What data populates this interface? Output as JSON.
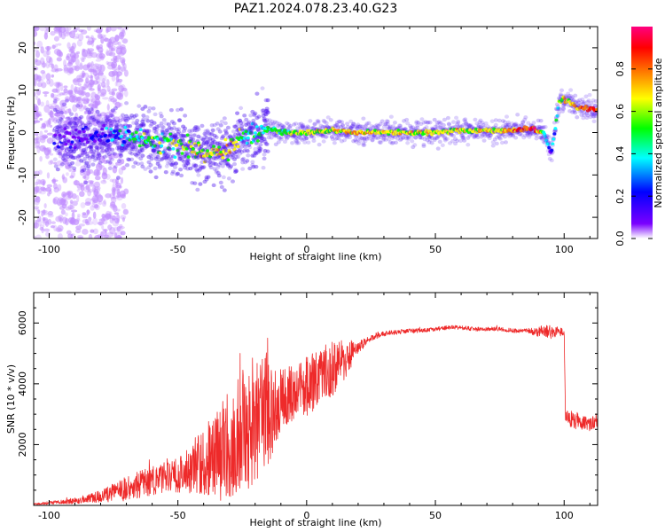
{
  "title": "PAZ1.2024.078.23.40.G23",
  "colors": {
    "snr_line": "#ee2a2a",
    "speckle": "#c08cff",
    "band_main": "#4a10ef",
    "band_core": "#20d8f0",
    "band_hot": "#ff3b1a",
    "frame": "#000000",
    "background": "#ffffff"
  },
  "chart_data": [
    {
      "type": "heatmap",
      "title": "PAZ1.2024.078.23.40.G23",
      "xlabel": "Height of straight line (km)",
      "ylabel": "Frequency (Hz)",
      "xlim": [
        -106,
        113
      ],
      "ylim": [
        -25,
        25
      ],
      "x_ticks": [
        -100,
        -50,
        0,
        50,
        100
      ],
      "y_ticks": [
        -20,
        -10,
        0,
        10,
        20
      ],
      "colorbar": {
        "label": "Normalized spectral amplitude",
        "range": [
          0,
          1
        ],
        "ticks": [
          0.0,
          0.2,
          0.4,
          0.6,
          0.8
        ],
        "tick_labels": [
          "0.0",
          "0.2",
          "0.4",
          "0.6",
          "0.8"
        ],
        "colormap": [
          "#ffffff",
          "#7a00ff",
          "#0000ff",
          "#00ffff",
          "#00ff00",
          "#ffff00",
          "#ff8000",
          "#ff0000",
          "#ff0080"
        ]
      },
      "ridge": {
        "x": [
          -100,
          -90,
          -80,
          -70,
          -60,
          -50,
          -40,
          -30,
          -25,
          -20,
          -15,
          -10,
          0,
          10,
          20,
          30,
          40,
          50,
          60,
          70,
          80,
          88,
          92,
          95,
          98,
          100,
          105,
          110,
          113
        ],
        "frequency_hz": [
          -1,
          -2,
          -1,
          -1,
          -2,
          -3,
          -5,
          -4,
          -1,
          0,
          1,
          0,
          0,
          0.5,
          0,
          0,
          0,
          0,
          0.5,
          0.5,
          0.5,
          1,
          0,
          -5,
          7,
          8,
          6,
          5.5,
          5.5
        ],
        "amplitude": [
          0.1,
          0.1,
          0.2,
          0.4,
          0.5,
          0.5,
          0.6,
          0.6,
          0.5,
          0.5,
          0.4,
          0.5,
          0.6,
          0.6,
          0.7,
          0.6,
          0.6,
          0.6,
          0.6,
          0.6,
          0.7,
          0.9,
          0.5,
          0.2,
          0.5,
          0.6,
          0.7,
          0.8,
          0.8
        ]
      },
      "scatter_region": {
        "x_range": [
          -106,
          -70
        ],
        "frequency_range_hz": [
          -25,
          25
        ],
        "amplitude_level": 0.1
      }
    },
    {
      "type": "line",
      "xlabel": "Height of straight line (km)",
      "ylabel": "SNR (10 * v/v)",
      "xlim": [
        -106,
        113
      ],
      "ylim": [
        0,
        7000
      ],
      "x_ticks": [
        -100,
        -50,
        0,
        50,
        100
      ],
      "y_ticks": [
        2000,
        4000,
        6000
      ],
      "series": [
        {
          "x": [
            -106,
            -100,
            -90,
            -80,
            -70,
            -60,
            -50,
            -45,
            -40,
            -35,
            -30,
            -25,
            -20,
            -15,
            -12,
            -10,
            -5,
            0,
            5,
            10,
            15,
            20,
            25,
            30,
            35,
            40,
            45,
            50,
            55,
            60,
            65,
            70,
            75,
            80,
            85,
            90,
            92,
            95,
            98,
            100,
            100.5,
            103,
            106,
            110,
            113
          ],
          "y": [
            50,
            80,
            150,
            300,
            550,
            800,
            1000,
            1200,
            1400,
            1800,
            2000,
            2500,
            2800,
            3200,
            3300,
            3500,
            3700,
            3900,
            4200,
            4500,
            4800,
            5200,
            5500,
            5650,
            5700,
            5750,
            5750,
            5800,
            5850,
            5850,
            5800,
            5800,
            5800,
            5750,
            5750,
            5700,
            5800,
            5700,
            5700,
            5700,
            3000,
            2800,
            2750,
            2700,
            2800
          ],
          "spread": [
            30,
            50,
            100,
            200,
            400,
            500,
            600,
            800,
            1100,
            1500,
            1800,
            2000,
            2200,
            2000,
            1500,
            1000,
            900,
            1000,
            900,
            1000,
            700,
            200,
            100,
            80,
            80,
            70,
            70,
            70,
            70,
            70,
            70,
            70,
            70,
            70,
            70,
            150,
            200,
            250,
            150,
            150,
            250,
            300,
            300,
            250,
            250
          ]
        }
      ]
    }
  ]
}
